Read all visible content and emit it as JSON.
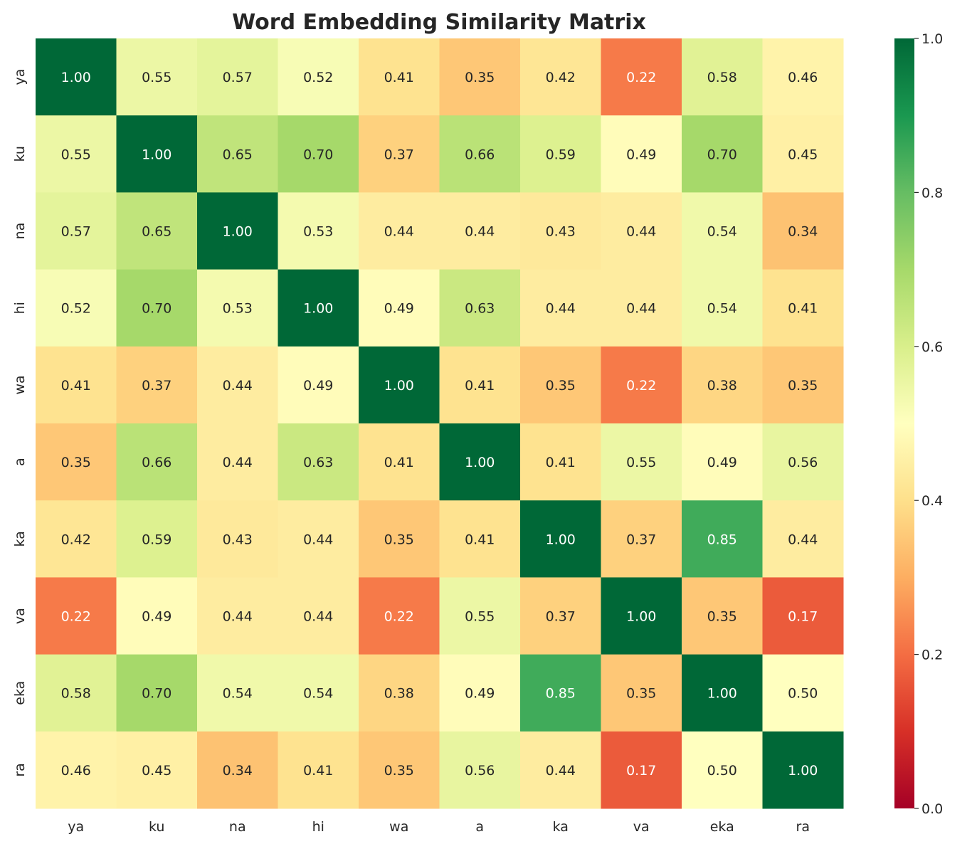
{
  "chart_data": {
    "type": "heatmap",
    "title": "Word Embedding Similarity Matrix",
    "xlabel": "",
    "ylabel": "",
    "x_labels": [
      "ya",
      "ku",
      "na",
      "hi",
      "wa",
      "a",
      "ka",
      "va",
      "eka",
      "ra"
    ],
    "y_labels": [
      "ya",
      "ku",
      "na",
      "hi",
      "wa",
      "a",
      "ka",
      "va",
      "eka",
      "ra"
    ],
    "values": [
      [
        1.0,
        0.55,
        0.57,
        0.52,
        0.41,
        0.35,
        0.42,
        0.22,
        0.58,
        0.46
      ],
      [
        0.55,
        1.0,
        0.65,
        0.7,
        0.37,
        0.66,
        0.59,
        0.49,
        0.7,
        0.45
      ],
      [
        0.57,
        0.65,
        1.0,
        0.53,
        0.44,
        0.44,
        0.43,
        0.44,
        0.54,
        0.34
      ],
      [
        0.52,
        0.7,
        0.53,
        1.0,
        0.49,
        0.63,
        0.44,
        0.44,
        0.54,
        0.41
      ],
      [
        0.41,
        0.37,
        0.44,
        0.49,
        1.0,
        0.41,
        0.35,
        0.22,
        0.38,
        0.35
      ],
      [
        0.35,
        0.66,
        0.44,
        0.63,
        0.41,
        1.0,
        0.41,
        0.55,
        0.49,
        0.56
      ],
      [
        0.42,
        0.59,
        0.43,
        0.44,
        0.35,
        0.41,
        1.0,
        0.37,
        0.85,
        0.44
      ],
      [
        0.22,
        0.49,
        0.44,
        0.44,
        0.22,
        0.55,
        0.37,
        1.0,
        0.35,
        0.17
      ],
      [
        0.58,
        0.7,
        0.54,
        0.54,
        0.38,
        0.49,
        0.85,
        0.35,
        1.0,
        0.5
      ],
      [
        0.46,
        0.45,
        0.34,
        0.41,
        0.35,
        0.56,
        0.44,
        0.17,
        0.5,
        1.0
      ]
    ],
    "colormap": "RdYlGn",
    "vmin": 0.0,
    "vmax": 1.0,
    "annotation_format": "0.00",
    "colorbar": {
      "ticks": [
        0.0,
        0.2,
        0.4,
        0.6,
        0.8,
        1.0
      ],
      "tick_labels": [
        "0.0",
        "0.2",
        "0.4",
        "0.6",
        "0.8",
        "1.0"
      ]
    },
    "grid": false
  }
}
